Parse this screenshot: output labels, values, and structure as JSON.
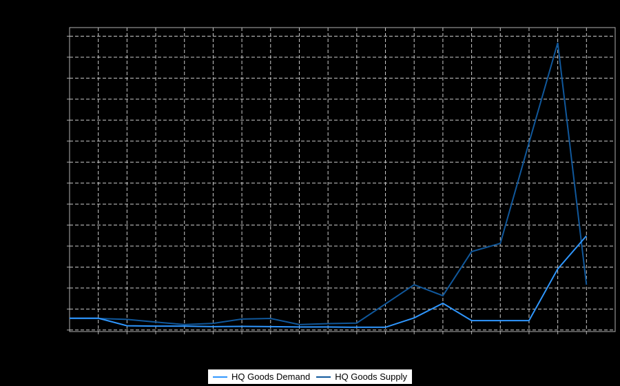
{
  "chart_data": {
    "type": "line",
    "title": "",
    "xlabel": "",
    "ylabel": "",
    "x": [
      1,
      2,
      3,
      4,
      5,
      6,
      7,
      8,
      9,
      10,
      11,
      12,
      13,
      14,
      15,
      16,
      17,
      18,
      19
    ],
    "series": [
      {
        "name": "HQ Goods Demand",
        "color": "#2f97ff",
        "values": [
          4.4,
          4.4,
          1.9,
          1.8,
          1.8,
          1.6,
          1.7,
          1.6,
          1.5,
          1.5,
          1.4,
          1.4,
          4.5,
          9.3,
          3.6,
          3.6,
          3.6,
          20.6,
          31.5
        ]
      },
      {
        "name": "HQ Goods Supply",
        "color": "#10589c",
        "values": [
          4.3,
          4.3,
          4.0,
          3.1,
          2.3,
          2.7,
          4.1,
          4.3,
          2.3,
          2.6,
          2.8,
          9.1,
          15.4,
          11.8,
          26.3,
          29.0,
          62.1,
          95.0,
          15.4
        ]
      }
    ],
    "ylim": [
      0,
      100
    ],
    "units": "percent of plot height (no axis tick labels visible in image)",
    "grid": "dashed",
    "legend_position": "bottom-center"
  },
  "legend": {
    "entries": [
      {
        "label": "HQ Goods Demand",
        "color": "#2f97ff"
      },
      {
        "label": "HQ Goods Supply",
        "color": "#10589c"
      }
    ]
  },
  "colors": {
    "background": "#000000",
    "plot_border": "#b0b0b0",
    "gridline": "#cccccc",
    "legend_bg": "#ffffff",
    "legend_text": "#000000"
  }
}
